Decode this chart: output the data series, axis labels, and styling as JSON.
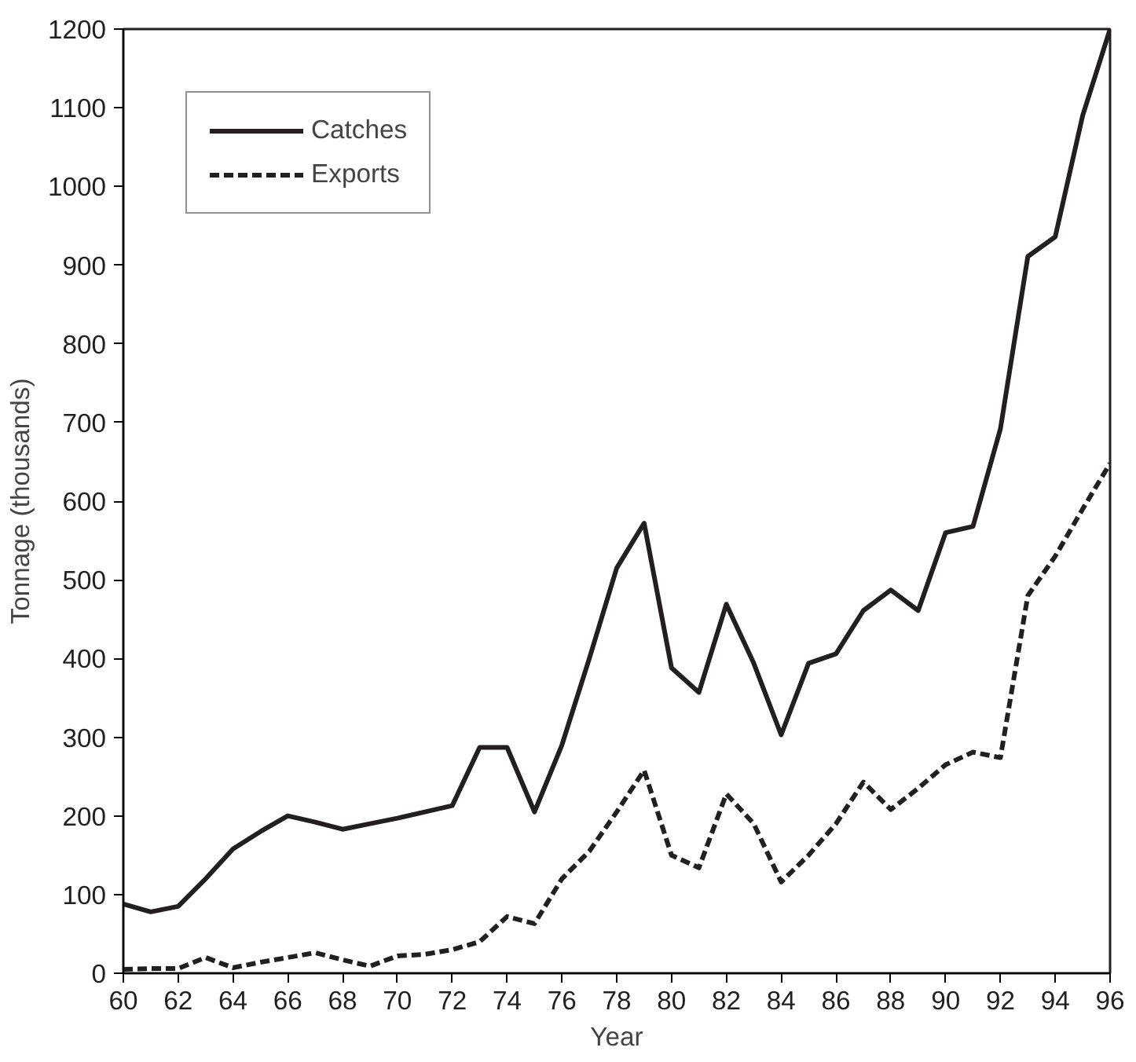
{
  "chart_data": {
    "type": "line",
    "xlabel": "Year",
    "ylabel": "Tonnage (thousands)",
    "x": [
      60,
      61,
      62,
      63,
      64,
      65,
      66,
      67,
      68,
      69,
      70,
      71,
      72,
      73,
      74,
      75,
      76,
      77,
      78,
      79,
      80,
      81,
      82,
      83,
      84,
      85,
      86,
      87,
      88,
      89,
      90,
      91,
      92,
      93,
      94,
      95,
      96
    ],
    "series": [
      {
        "name": "Catches",
        "color": "#231f20",
        "line_style": "solid",
        "values": [
          88,
          78,
          85,
          120,
          158,
          180,
          200,
          192,
          183,
          190,
          197,
          205,
          213,
          287,
          287,
          205,
          290,
          400,
          515,
          572,
          388,
          357,
          469,
          394,
          303,
          394,
          406,
          461,
          487,
          461,
          560,
          568,
          692,
          911,
          936,
          1090,
          1200
        ]
      },
      {
        "name": "Exports",
        "color": "#231f20",
        "line_style": "dashed",
        "values": [
          5,
          6,
          6,
          20,
          7,
          14,
          20,
          26,
          17,
          9,
          22,
          24,
          30,
          40,
          72,
          63,
          120,
          155,
          205,
          258,
          150,
          134,
          228,
          190,
          116,
          150,
          190,
          243,
          208,
          235,
          265,
          281,
          274,
          480,
          530,
          590,
          648
        ]
      }
    ],
    "xlim": [
      60,
      96
    ],
    "ylim": [
      0,
      1200
    ],
    "xticks": [
      60,
      62,
      64,
      66,
      68,
      70,
      72,
      74,
      76,
      78,
      80,
      82,
      84,
      86,
      88,
      90,
      92,
      94,
      96
    ],
    "yticks": [
      0,
      100,
      200,
      300,
      400,
      500,
      600,
      700,
      800,
      900,
      1000,
      1100,
      1200
    ],
    "grid": false,
    "legend": "top left",
    "marker": "none"
  }
}
